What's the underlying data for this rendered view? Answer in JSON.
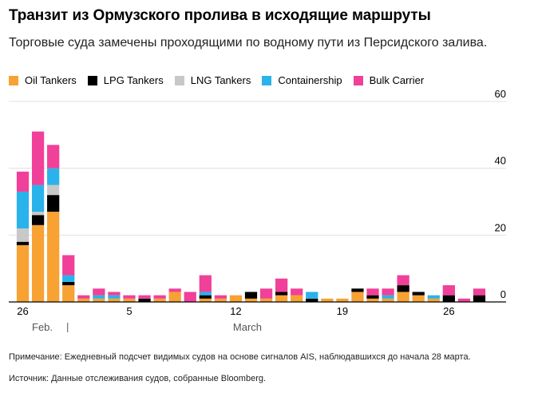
{
  "title": "Транзит из Ормузского пролива в исходящие маршруты",
  "subtitle": "Торговые суда замечены проходящими по водному пути из Персидского залива.",
  "note": "Примечание: Ежедневный подсчет видимых судов на основе сигналов AIS, наблюдавшихся до начала 28 марта.",
  "source": "Источник: Данные отслеживания судов, собранные Bloomberg.",
  "colors": {
    "oil": "#f7a233",
    "lpg": "#000000",
    "lng": "#c8c8c8",
    "container": "#2ab3ea",
    "bulk": "#f0409a",
    "grid": "#e0e0e0",
    "axis": "#000000"
  },
  "chart_data": {
    "type": "bar",
    "stacked": true,
    "ylim": [
      0,
      60
    ],
    "yticks": [
      0,
      20,
      40,
      60
    ],
    "grid": true,
    "legend_position": "top-left",
    "x_tick_labels": [
      "26",
      "5",
      "12",
      "19",
      "26"
    ],
    "x_month_labels": [
      "Feb.",
      "March"
    ],
    "x": [
      "Feb 26",
      "Feb 27",
      "Feb 28",
      "Mar 1",
      "Mar 2",
      "Mar 3",
      "Mar 4",
      "Mar 5",
      "Mar 6",
      "Mar 7",
      "Mar 8",
      "Mar 9",
      "Mar 10",
      "Mar 11",
      "Mar 12",
      "Mar 13",
      "Mar 14",
      "Mar 15",
      "Mar 16",
      "Mar 17",
      "Mar 18",
      "Mar 19",
      "Mar 20",
      "Mar 21",
      "Mar 22",
      "Mar 23",
      "Mar 24",
      "Mar 25",
      "Mar 26",
      "Mar 27",
      "Mar 28"
    ],
    "series": [
      {
        "key": "oil",
        "name": "Oil Tankers",
        "values": [
          17,
          23,
          27,
          5,
          1,
          1,
          1,
          1,
          0,
          1,
          3,
          0,
          1,
          1,
          2,
          1,
          1,
          2,
          2,
          0,
          1,
          1,
          3,
          1,
          1,
          3,
          2,
          1,
          0,
          0,
          0
        ]
      },
      {
        "key": "lpg",
        "name": "LPG Tankers",
        "values": [
          1,
          3,
          5,
          1,
          0,
          0,
          0,
          0,
          1,
          0,
          0,
          0,
          1,
          0,
          0,
          2,
          0,
          1,
          0,
          1,
          0,
          0,
          1,
          1,
          0,
          2,
          1,
          0,
          2,
          0,
          2
        ]
      },
      {
        "key": "lng",
        "name": "LNG Tankers",
        "values": [
          4,
          1,
          3,
          0,
          0,
          0,
          0,
          0,
          0,
          0,
          0,
          0,
          0,
          0,
          0,
          0,
          0,
          0,
          0,
          0,
          0,
          0,
          0,
          0,
          0,
          0,
          0,
          0,
          0,
          0,
          0
        ]
      },
      {
        "key": "container",
        "name": "Containership",
        "values": [
          11,
          8,
          5,
          2,
          0,
          1,
          1,
          0,
          0,
          0,
          0,
          0,
          1,
          0,
          0,
          0,
          0,
          0,
          0,
          2,
          0,
          0,
          0,
          0,
          1,
          0,
          0,
          1,
          0,
          0,
          0
        ]
      },
      {
        "key": "bulk",
        "name": "Bulk Carrier",
        "values": [
          6,
          16,
          7,
          6,
          1,
          2,
          1,
          1,
          1,
          1,
          1,
          3,
          5,
          1,
          0,
          0,
          3,
          4,
          2,
          0,
          0,
          0,
          0,
          2,
          2,
          3,
          0,
          0,
          3,
          1,
          2
        ]
      }
    ]
  }
}
